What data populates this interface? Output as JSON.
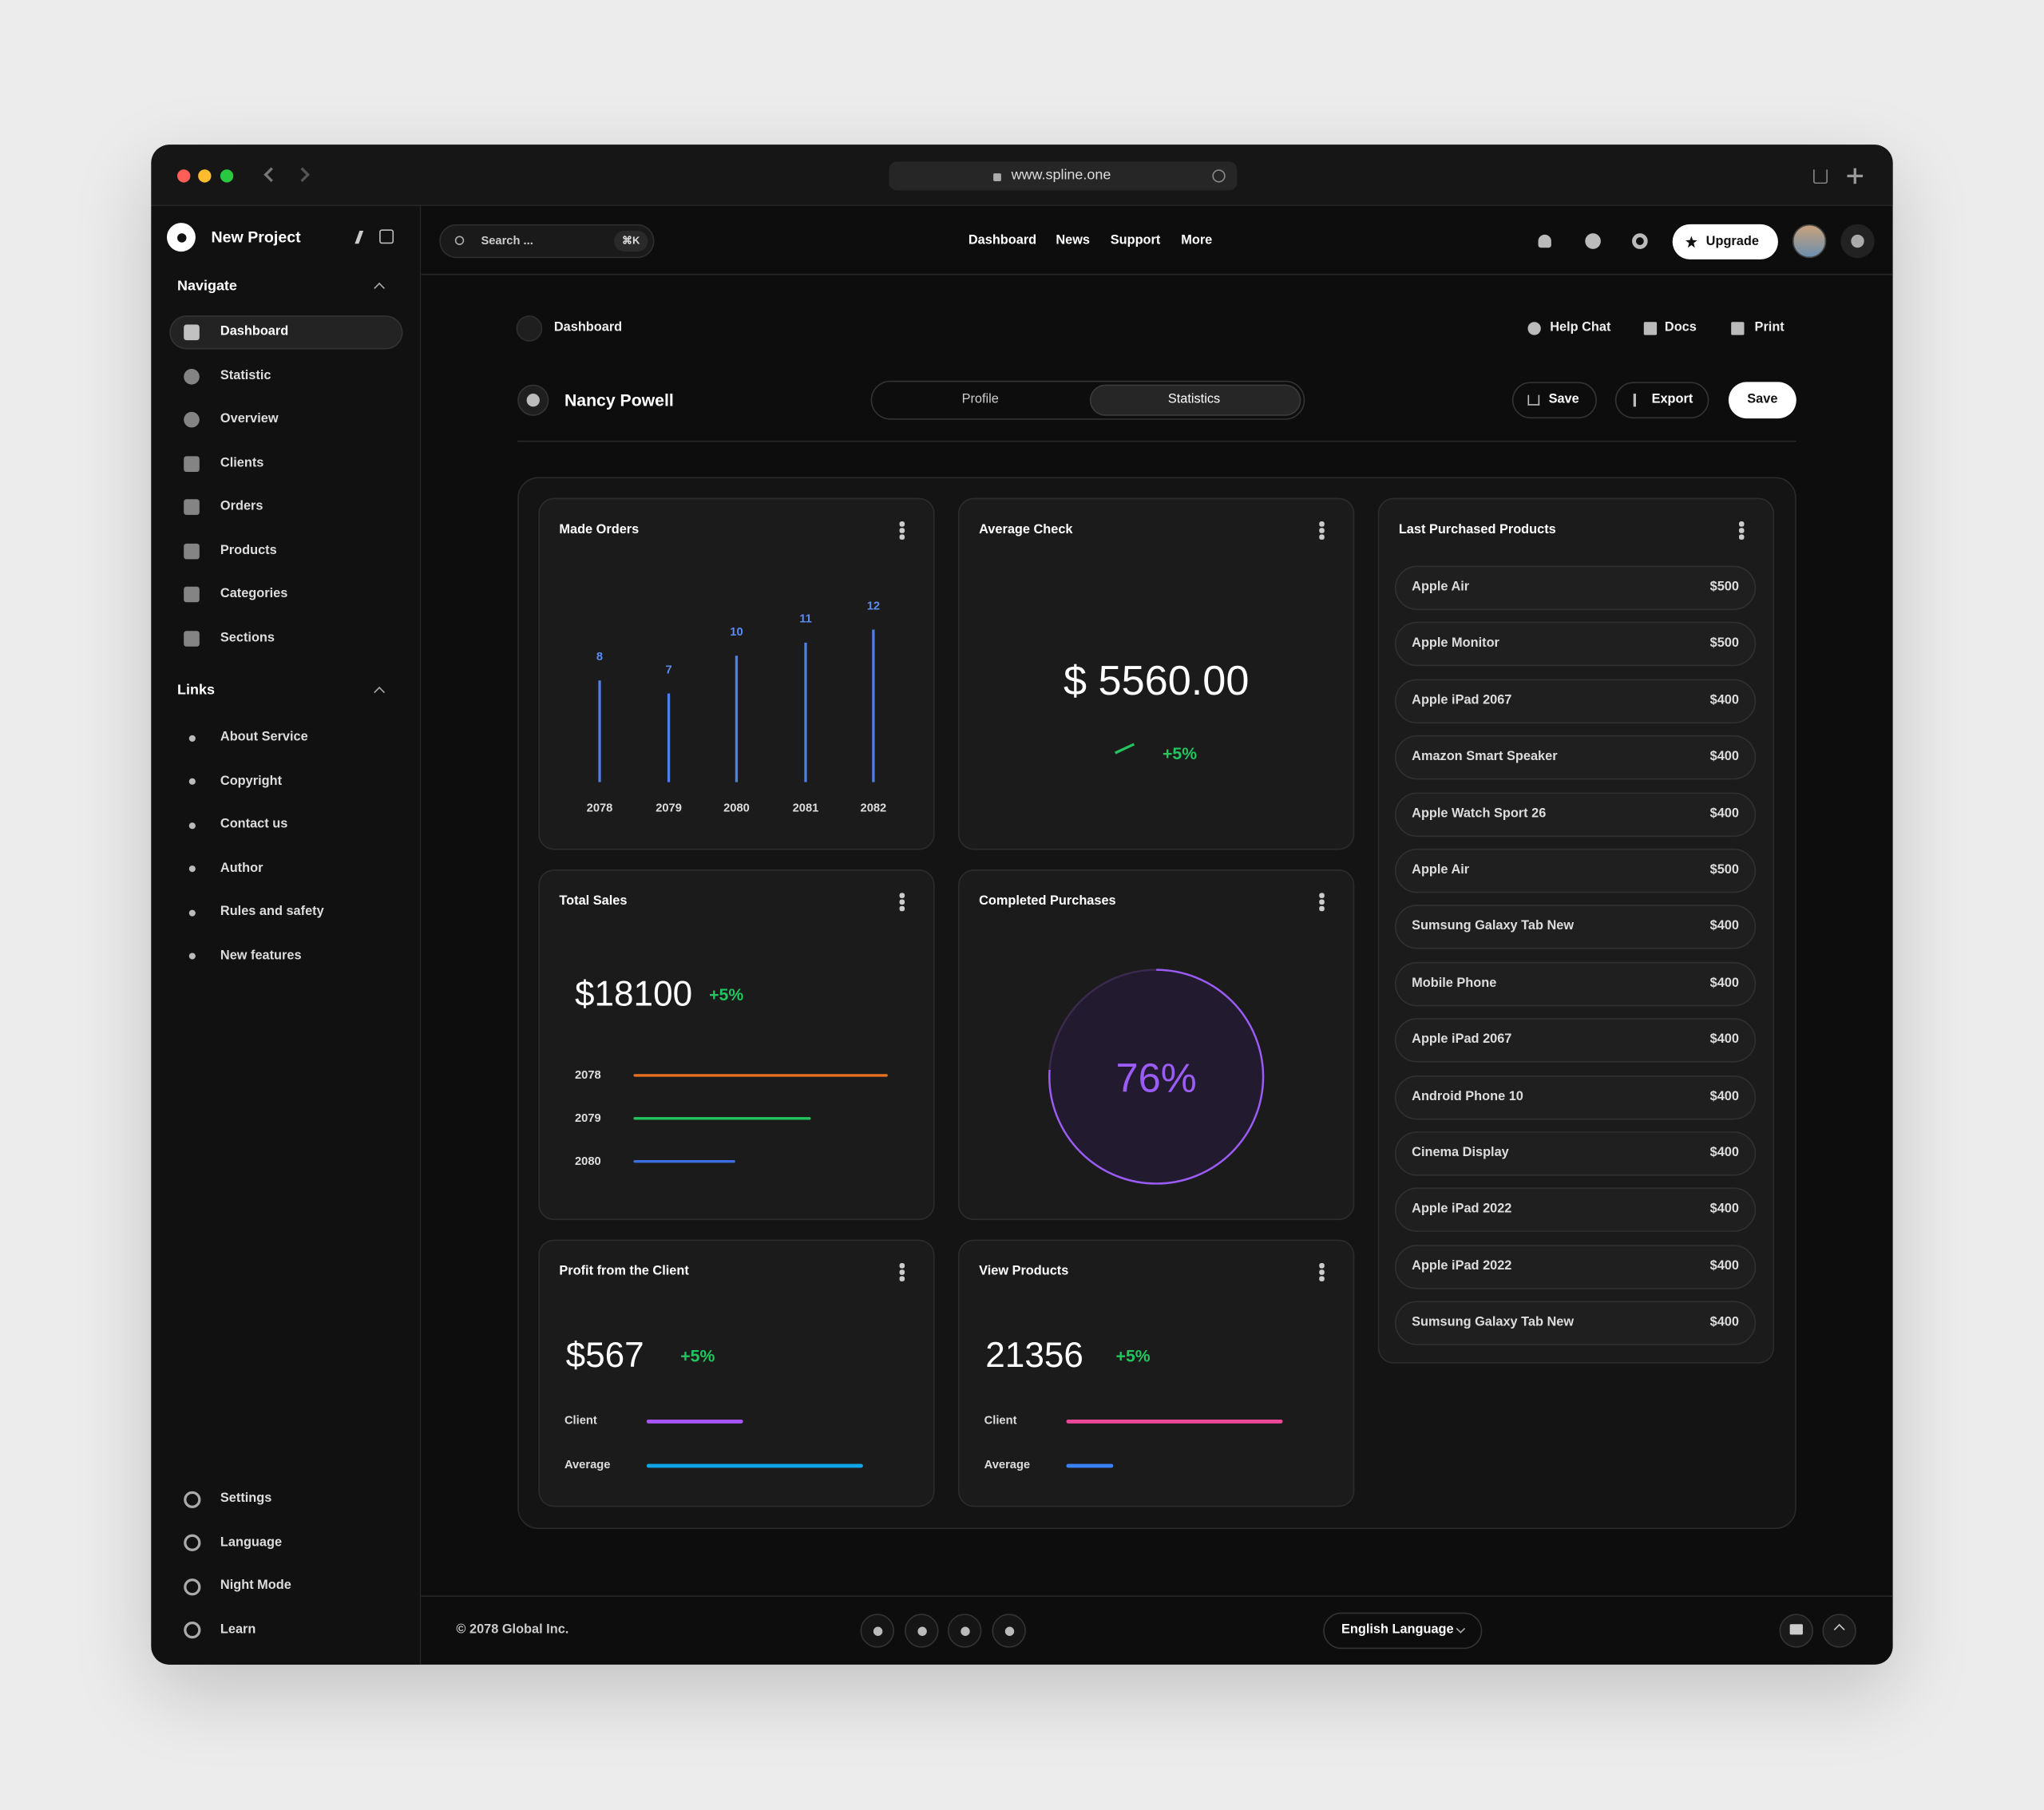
{
  "browser": {
    "url": "www.spline.one"
  },
  "sidebar": {
    "project": "New Project",
    "navigate_title": "Navigate",
    "nav": [
      "Dashboard",
      "Statistic",
      "Overview",
      "Clients",
      "Orders",
      "Products",
      "Categories",
      "Sections"
    ],
    "links_title": "Links",
    "links": [
      "About Service",
      "Copyright",
      "Contact us",
      "Author",
      "Rules and safety",
      "New features"
    ],
    "bottom": [
      "Settings",
      "Language",
      "Night Mode",
      "Learn"
    ]
  },
  "topbar": {
    "search": "Search ...",
    "shortcut": "⌘K",
    "menu": [
      "Dashboard",
      "News",
      "Support",
      "More"
    ],
    "upgrade": "Upgrade"
  },
  "breadcrumb": "Dashboard",
  "actions": [
    "Help Chat",
    "Docs",
    "Print"
  ],
  "profile": {
    "name": "Nancy Powell",
    "tabs": [
      "Profile",
      "Statistics"
    ],
    "buttons": [
      "Save",
      "Export",
      "Save"
    ]
  },
  "cards": {
    "made_orders": {
      "title": "Made Orders",
      "categories": [
        "2078",
        "2079",
        "2080",
        "2081",
        "2082"
      ],
      "values": [
        8,
        7,
        10,
        11,
        12
      ]
    },
    "average_check": {
      "title": "Average Check",
      "value": "$ 5560.00",
      "change": "+5%"
    },
    "total_sales": {
      "title": "Total Sales",
      "value": "$18100",
      "change": "+5%",
      "rows": [
        "2078",
        "2079",
        "2080"
      ]
    },
    "completed": {
      "title": "Completed Purchases",
      "value": 76,
      "value_label": "76%"
    },
    "profit": {
      "title": "Profit from the Client",
      "value": "$567",
      "change": "+5%",
      "rows": [
        "Client",
        "Average"
      ]
    },
    "view_products": {
      "title": "View Products",
      "value": "21356",
      "change": "+5%",
      "rows": [
        "Client",
        "Average"
      ]
    },
    "last_purchased": {
      "title": "Last Purchased Products",
      "items": [
        [
          "Apple Air",
          "$500"
        ],
        [
          "Apple Monitor",
          "$500"
        ],
        [
          "Apple iPad 2067",
          "$400"
        ],
        [
          "Amazon Smart Speaker",
          "$400"
        ],
        [
          "Apple Watch Sport 26",
          "$400"
        ],
        [
          "Apple Air",
          "$500"
        ],
        [
          "Sumsung Galaxy Tab New",
          "$400"
        ],
        [
          "Mobile Phone",
          "$400"
        ],
        [
          "Apple iPad 2067",
          "$400"
        ],
        [
          "Android Phone 10",
          "$400"
        ],
        [
          "Cinema Display",
          "$400"
        ],
        [
          "Apple iPad 2022",
          "$400"
        ],
        [
          "Apple iPad 2022",
          "$400"
        ],
        [
          "Sumsung Galaxy Tab New",
          "$400"
        ]
      ]
    }
  },
  "footer": {
    "copyright": "© 2078 Global Inc.",
    "language": "English Language"
  }
}
